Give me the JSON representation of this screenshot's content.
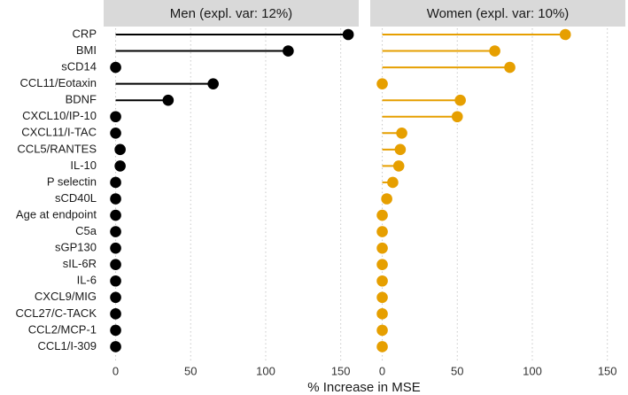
{
  "chart_data": {
    "type": "lollipop",
    "xlabel": "% Increase in MSE",
    "xlim": [
      -8,
      162
    ],
    "xticks": [
      0,
      50,
      100,
      150
    ],
    "grid": "vertical dotted",
    "categories": [
      "CRP",
      "BMI",
      "sCD14",
      "CCL11/Eotaxin",
      "BDNF",
      "CXCL10/IP-10",
      "CXCL11/I-TAC",
      "CCL5/RANTES",
      "IL-10",
      "P selectin",
      "sCD40L",
      "Age at endpoint",
      "C5a",
      "sGP130",
      "sIL-6R",
      "IL-6",
      "CXCL9/MIG",
      "CCL27/C-TACK",
      "CCL2/MCP-1",
      "CCL1/I-309"
    ],
    "panels": [
      {
        "name": "men",
        "title": "Men (expl. var: 12%)",
        "color": "#000000",
        "values": [
          155,
          115,
          0,
          65,
          35,
          0,
          0,
          3,
          3,
          0,
          0,
          0,
          0,
          0,
          0,
          0,
          0,
          0,
          0,
          0
        ]
      },
      {
        "name": "women",
        "title": "Women (expl. var: 10%)",
        "color": "#E69F00",
        "values": [
          122,
          75,
          85,
          0,
          52,
          50,
          13,
          12,
          11,
          7,
          3,
          0,
          0,
          0,
          0,
          0,
          0,
          0,
          0,
          0
        ]
      }
    ]
  },
  "style": {
    "strip_fill": "#d9d9d9",
    "grid_color": "#c8c8c8"
  }
}
